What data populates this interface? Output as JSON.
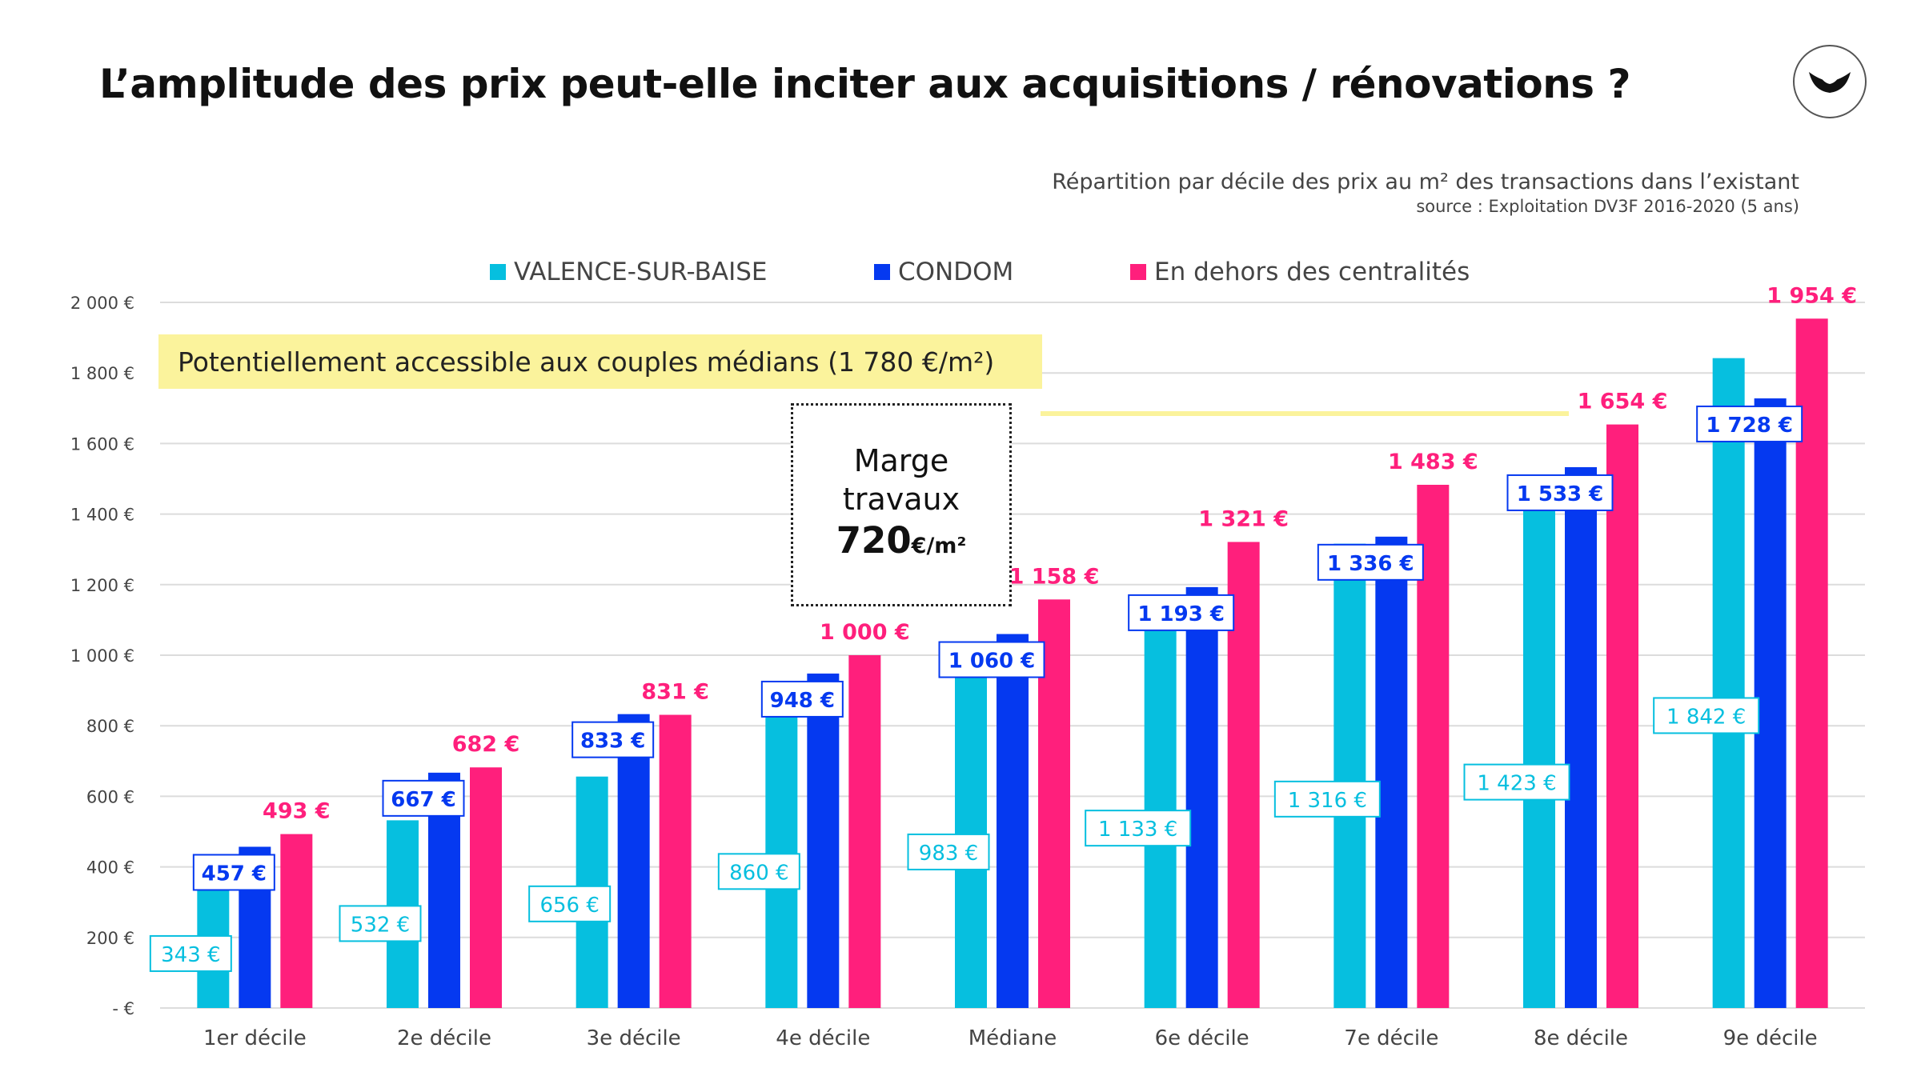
{
  "header": {
    "title": "L’amplitude des prix peut-elle inciter aux acquisitions / rénovations ?",
    "subtitle": "Répartition par décile des prix au m² des transactions dans l’existant",
    "source": "source : Exploitation DV3F 2016-2020 (5 ans)"
  },
  "annotations": {
    "threshold_label": "Potentiellement accessible aux couples médians (1 780 €/m²)",
    "marge_line1": "Marge",
    "marge_line2": "travaux",
    "marge_value": "720",
    "marge_unit": "€/m²"
  },
  "colors": {
    "valence": "#06bfdf",
    "condom": "#0539f0",
    "hors": "#ff1f7c",
    "threshold": "#fbf39c",
    "grid": "#dcdcdc"
  },
  "chart_data": {
    "type": "bar",
    "categories": [
      "1er décile",
      "2e décile",
      "3e décile",
      "4e décile",
      "Médiane",
      "6e décile",
      "7e décile",
      "8e décile",
      "9e décile"
    ],
    "series": [
      {
        "name": "VALENCE-SUR-BAISE",
        "values": [
          343,
          532,
          656,
          860,
          983,
          1133,
          1316,
          1423,
          1842
        ],
        "labels": [
          "343 €",
          "532 €",
          "656 €",
          "860 €",
          "983 €",
          "1 133 €",
          "1 316 €",
          "1 423 €",
          "1 842 €"
        ]
      },
      {
        "name": "CONDOM",
        "values": [
          457,
          667,
          833,
          948,
          1060,
          1193,
          1336,
          1533,
          1728
        ],
        "labels": [
          "457 €",
          "667 €",
          "833 €",
          "948 €",
          "1 060 €",
          "1 193 €",
          "1 336 €",
          "1 533 €",
          "1 728 €"
        ]
      },
      {
        "name": "En dehors des centralités",
        "values": [
          493,
          682,
          831,
          1000,
          1158,
          1321,
          1483,
          1654,
          1954
        ],
        "labels": [
          "493 €",
          "682 €",
          "831 €",
          "1 000 €",
          "1 158 €",
          "1 321 €",
          "1 483 €",
          "1 654 €",
          "1 954 €"
        ]
      }
    ],
    "ylim": [
      0,
      2000
    ],
    "yticks": [
      0,
      200,
      400,
      600,
      800,
      1000,
      1200,
      1400,
      1600,
      1800,
      2000
    ],
    "ytick_labels": [
      "-  €",
      "200 €",
      "400 €",
      "600 €",
      "800 €",
      "1 000 €",
      "1 200 €",
      "1 400 €",
      "1 600 €",
      "1 800 €",
      "2 000 €"
    ],
    "threshold": 1780,
    "grid": true,
    "legend": "top"
  }
}
